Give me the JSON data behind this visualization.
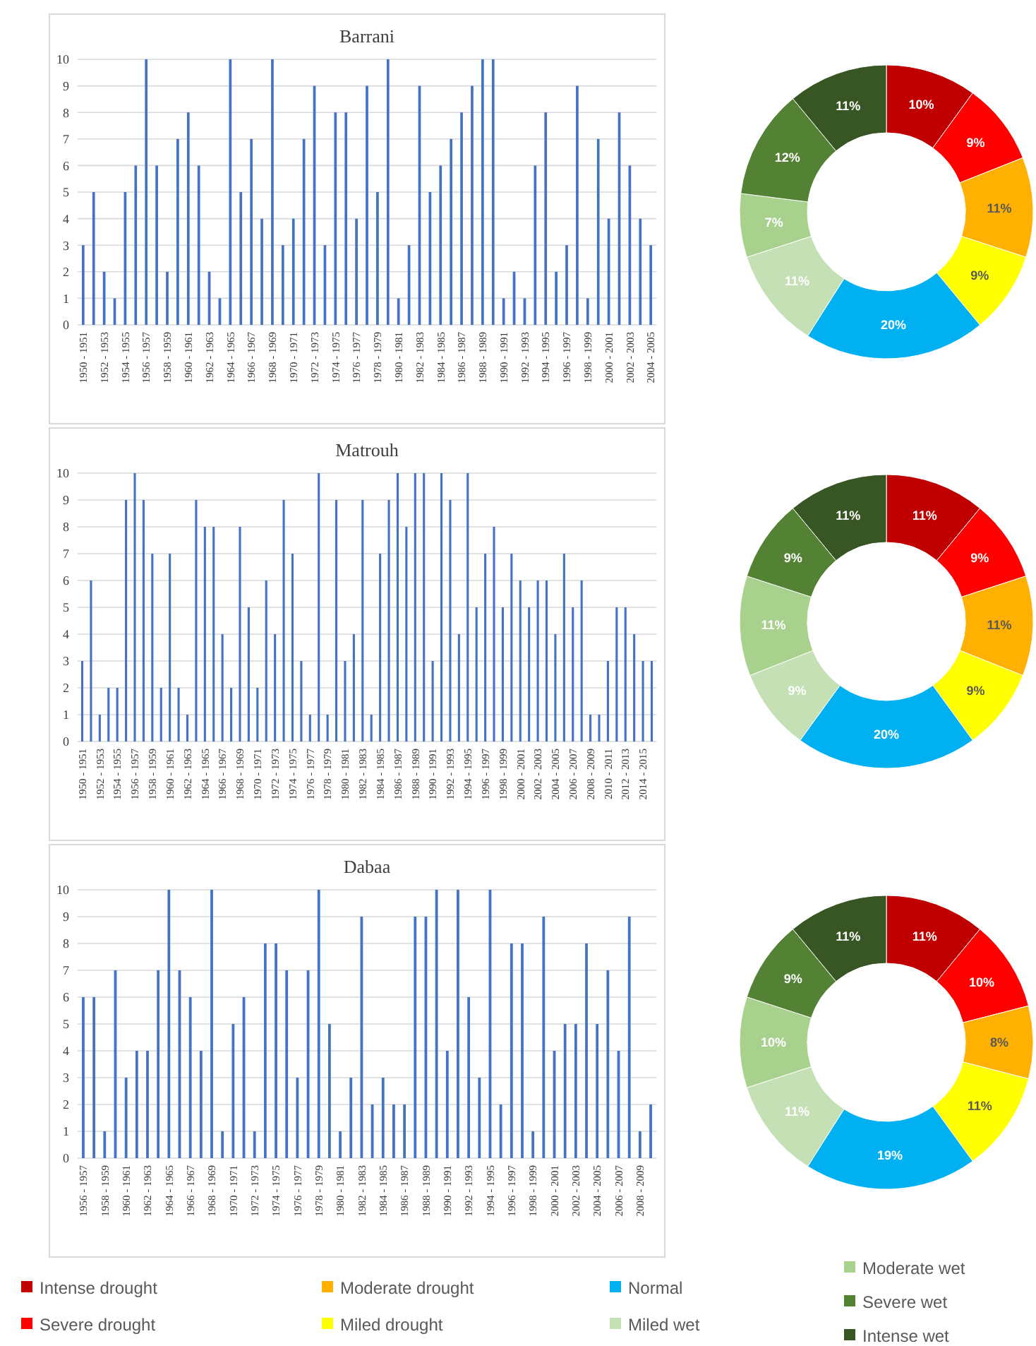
{
  "chart_data": [
    {
      "type": "bar",
      "title": "Barrani",
      "color": "#4472c4",
      "ylim": [
        0,
        10
      ],
      "yticks": [
        0,
        1,
        2,
        3,
        4,
        5,
        6,
        7,
        8,
        9,
        10
      ],
      "grid": "y",
      "categories": [
        "1950 - 1951",
        null,
        "1952 - 1953",
        null,
        "1954 - 1955",
        null,
        "1956 - 1957",
        null,
        "1958 - 1959",
        null,
        "1960 - 1961",
        null,
        "1962 - 1963",
        null,
        "1964 - 1965",
        null,
        "1966 - 1967",
        null,
        "1968 - 1969",
        null,
        "1970 - 1971",
        null,
        "1972 - 1973",
        null,
        "1974 - 1975",
        null,
        "1976 - 1977",
        null,
        "1978 - 1979",
        null,
        "1980 - 1981",
        null,
        "1982 - 1983",
        null,
        "1984 - 1985",
        null,
        "1986 - 1987",
        null,
        "1988 - 1989",
        null,
        "1990 - 1991",
        null,
        "1992 - 1993",
        null,
        "1994 - 1995",
        null,
        "1996 - 1997",
        null,
        "1998 - 1999",
        null,
        "2000 - 2001",
        null,
        "2002 - 2003",
        null,
        "2004 - 2005"
      ],
      "values": [
        3,
        5,
        2,
        1,
        5,
        6,
        10,
        6,
        2,
        7,
        8,
        6,
        2,
        1,
        10,
        5,
        7,
        4,
        10,
        3,
        4,
        7,
        9,
        3,
        8,
        8,
        4,
        9,
        5,
        10,
        1,
        3,
        9,
        5,
        6,
        7,
        8,
        9,
        10,
        10,
        1,
        2,
        1,
        6,
        8,
        2,
        3,
        9,
        1,
        7,
        4,
        8,
        6,
        4,
        3
      ]
    },
    {
      "type": "donut",
      "categories": [
        "Intense drought",
        "Severe drought",
        "Moderate drought",
        "Miled drought",
        "Normal",
        "Miled wet",
        "Moderate wet",
        "Severe wet",
        "Intense wet"
      ],
      "colors": [
        "#c00000",
        "#ff0000",
        "#ffb000",
        "#ffff00",
        "#00b0f0",
        "#c5e0b4",
        "#a9d18e",
        "#548235",
        "#375623"
      ],
      "values": [
        10,
        9,
        11,
        9,
        20,
        11,
        7,
        12,
        11
      ],
      "value_labels": [
        "10%",
        "9%",
        "11%",
        "9%",
        "20%",
        "11%",
        "7%",
        "12%",
        "11%"
      ],
      "legend": "bottom"
    },
    {
      "type": "bar",
      "title": "Matrouh",
      "color": "#4472c4",
      "ylim": [
        0,
        10
      ],
      "yticks": [
        0,
        1,
        2,
        3,
        4,
        5,
        6,
        7,
        8,
        9,
        10
      ],
      "grid": "y",
      "categories": [
        "1950 - 1951",
        null,
        "1952 - 1953",
        null,
        "1954 - 1955",
        null,
        "1956 - 1957",
        null,
        "1958 - 1959",
        null,
        "1960 - 1961",
        null,
        "1962 - 1963",
        null,
        "1964 - 1965",
        null,
        "1966 - 1967",
        null,
        "1968 - 1969",
        null,
        "1970 - 1971",
        null,
        "1972 - 1973",
        null,
        "1974 - 1975",
        null,
        "1976 - 1977",
        null,
        "1978 - 1979",
        null,
        "1980 - 1981",
        null,
        "1982 - 1983",
        null,
        "1984 - 1985",
        null,
        "1986 - 1987",
        null,
        "1988 - 1989",
        null,
        "1990 - 1991",
        null,
        "1992 - 1993",
        null,
        "1994 - 1995",
        null,
        "1996 - 1997",
        null,
        "1998 - 1999",
        null,
        "2000 - 2001",
        null,
        "2002 - 2003",
        null,
        "2004 - 2005",
        null,
        "2006 - 2007",
        null,
        "2008 - 2009",
        null,
        "2010 - 2011",
        null,
        "2012 - 2013",
        null,
        "2014 - 2015",
        null
      ],
      "values": [
        3,
        6,
        1,
        2,
        2,
        9,
        10,
        9,
        7,
        2,
        7,
        2,
        1,
        9,
        8,
        8,
        4,
        2,
        8,
        5,
        2,
        6,
        4,
        9,
        7,
        3,
        1,
        10,
        1,
        9,
        3,
        4,
        9,
        1,
        7,
        9,
        10,
        8,
        10,
        10,
        3,
        10,
        9,
        4,
        10,
        5,
        7,
        8,
        5,
        7,
        6,
        5,
        6,
        6,
        4,
        7,
        5,
        6,
        1,
        1,
        3,
        5,
        5,
        4,
        3,
        3
      ]
    },
    {
      "type": "donut",
      "categories": [
        null,
        null,
        null,
        null,
        null,
        null,
        null,
        null,
        null
      ],
      "colors": [
        "#c00000",
        "#ff0000",
        "#ffb000",
        "#ffff00",
        "#00b0f0",
        "#c5e0b4",
        "#a9d18e",
        "#548235",
        "#375623"
      ],
      "values": [
        11,
        9,
        11,
        9,
        20,
        9,
        11,
        9,
        11
      ],
      "value_labels": [
        "11%",
        "9%",
        "11%",
        "9%",
        "20%",
        "9%",
        "11%",
        "9%",
        "11%"
      ]
    },
    {
      "type": "bar",
      "title": "Dabaa",
      "color": "#4472c4",
      "ylim": [
        0,
        10
      ],
      "yticks": [
        0,
        1,
        2,
        3,
        4,
        5,
        6,
        7,
        8,
        9,
        10
      ],
      "grid": "y",
      "categories": [
        "1956 - 1957",
        null,
        "1958 - 1959",
        null,
        "1960 - 1961",
        null,
        "1962 - 1963",
        null,
        "1964 - 1965",
        null,
        "1966 - 1967",
        null,
        "1968 - 1969",
        null,
        "1970 - 1971",
        null,
        "1972 - 1973",
        null,
        "1974 - 1975",
        null,
        "1976 - 1977",
        null,
        "1978 - 1979",
        null,
        "1980 - 1981",
        null,
        "1982 - 1983",
        null,
        "1984 - 1985",
        null,
        "1986 - 1987",
        null,
        "1988 - 1989",
        null,
        "1990 - 1991",
        null,
        "1992 - 1993",
        null,
        "1994 - 1995",
        null,
        "1996 - 1997",
        null,
        "1998 - 1999",
        null,
        "2000 - 2001",
        null,
        "2002 - 2003",
        null,
        "2004 - 2005",
        null,
        "2006 - 2007",
        null,
        "2008 - 2009",
        null
      ],
      "values": [
        6,
        6,
        1,
        7,
        3,
        4,
        4,
        7,
        10,
        7,
        6,
        4,
        10,
        1,
        5,
        6,
        1,
        8,
        8,
        7,
        3,
        7,
        10,
        5,
        1,
        3,
        9,
        2,
        3,
        2,
        2,
        9,
        9,
        10,
        4,
        10,
        6,
        3,
        10,
        2,
        8,
        8,
        1,
        9,
        4,
        5,
        5,
        8,
        5,
        7,
        4,
        9,
        1,
        2
      ]
    },
    {
      "type": "donut",
      "categories": [
        null,
        null,
        null,
        null,
        null,
        null,
        null,
        null,
        null
      ],
      "colors": [
        "#c00000",
        "#ff0000",
        "#ffb000",
        "#ffff00",
        "#00b0f0",
        "#c5e0b4",
        "#a9d18e",
        "#548235",
        "#375623"
      ],
      "values": [
        11,
        10,
        8,
        11,
        19,
        11,
        10,
        9,
        11
      ],
      "value_labels": [
        "11%",
        "10%",
        "8%",
        "11%",
        "19%",
        "11%",
        "10%",
        "9%",
        "11%"
      ]
    }
  ]
}
